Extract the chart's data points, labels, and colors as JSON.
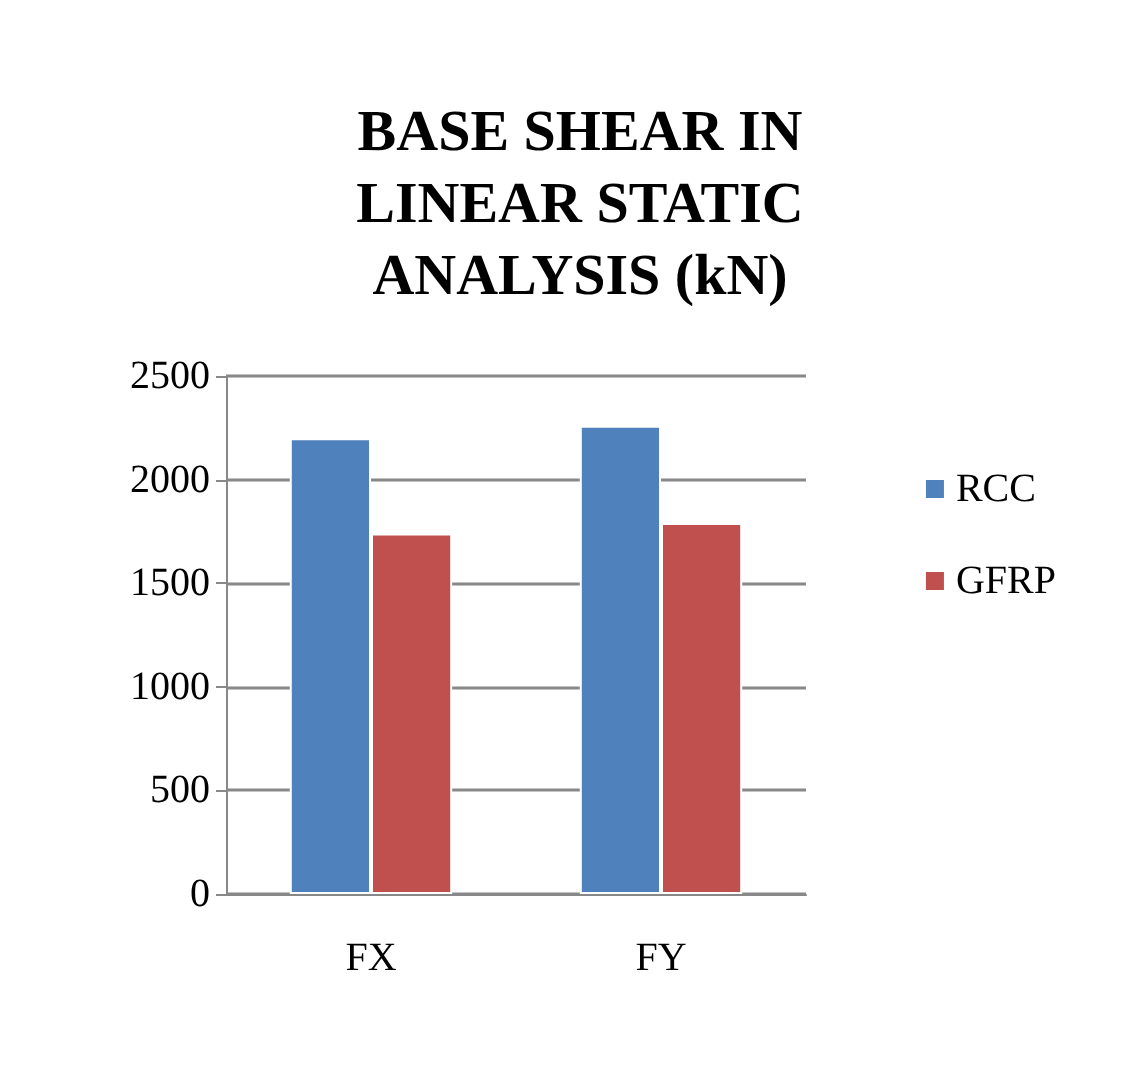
{
  "chart_data": {
    "type": "bar",
    "title": "BASE SHEAR IN\nLINEAR STATIC\nANALYSIS (kN)",
    "categories": [
      "FX",
      "FY"
    ],
    "series": [
      {
        "name": "RCC",
        "color": "#4f81bd",
        "values": [
          2200,
          2260
        ]
      },
      {
        "name": "GFRP",
        "color": "#c0504d",
        "values": [
          1740,
          1790
        ]
      }
    ],
    "ylim": [
      0,
      2500
    ],
    "yticks": [
      0,
      500,
      1000,
      1500,
      2000,
      2500
    ],
    "grid": "y",
    "legend": "right"
  }
}
